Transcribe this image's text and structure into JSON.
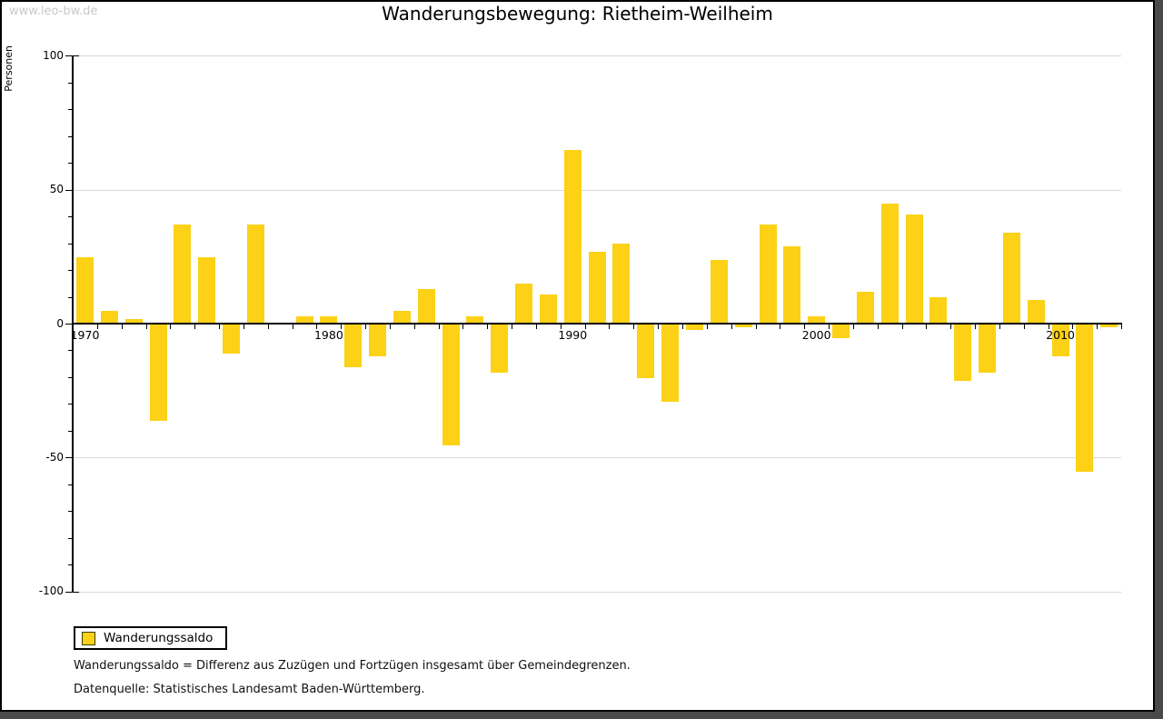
{
  "watermark": "www.leo-bw.de",
  "title": "Wanderungsbewegung: Rietheim-Weilheim",
  "y_axis_label": "Personen",
  "legend": {
    "label": "Wanderungssaldo"
  },
  "footnotes": [
    "Wanderungssaldo = Differenz aus Zuzügen und Fortzügen insgesamt über Gemeindegrenzen.",
    "Datenquelle: Statistisches Landesamt Baden-Württemberg."
  ],
  "chart_data": {
    "type": "bar",
    "title": "Wanderungsbewegung: Rietheim-Weilheim",
    "xlabel": "",
    "ylabel": "Personen",
    "ylim": [
      -100,
      100
    ],
    "y_major_ticks": [
      100,
      50,
      0,
      -50,
      -100
    ],
    "y_minor_tick_step": 10,
    "gridlines": [
      100,
      50,
      -50,
      -100
    ],
    "grid": "horizontal-only",
    "legend_position": "bottom-left",
    "series_name": "Wanderungssaldo",
    "bar_color": "#FCD116",
    "axis_color": "#000000",
    "grid_color": "#d9d9d9",
    "x_labeled_ticks": [
      1970,
      1980,
      1990,
      2000,
      2010
    ],
    "categories": [
      1970,
      1971,
      1972,
      1973,
      1974,
      1975,
      1976,
      1977,
      1978,
      1979,
      1980,
      1981,
      1982,
      1983,
      1984,
      1985,
      1986,
      1987,
      1988,
      1989,
      1990,
      1991,
      1992,
      1993,
      1994,
      1995,
      1996,
      1997,
      1998,
      1999,
      2000,
      2001,
      2002,
      2003,
      2004,
      2005,
      2006,
      2007,
      2008,
      2009,
      2010,
      2011,
      2012
    ],
    "values": [
      25,
      5,
      2,
      -36,
      37,
      25,
      -11,
      37,
      0,
      3,
      3,
      -16,
      -12,
      5,
      13,
      -45,
      3,
      -18,
      15,
      11,
      65,
      27,
      30,
      -20,
      -29,
      -2,
      24,
      -1,
      37,
      29,
      3,
      -5,
      12,
      45,
      41,
      10,
      -21,
      -18,
      34,
      9,
      -12,
      -55,
      -1
    ]
  }
}
